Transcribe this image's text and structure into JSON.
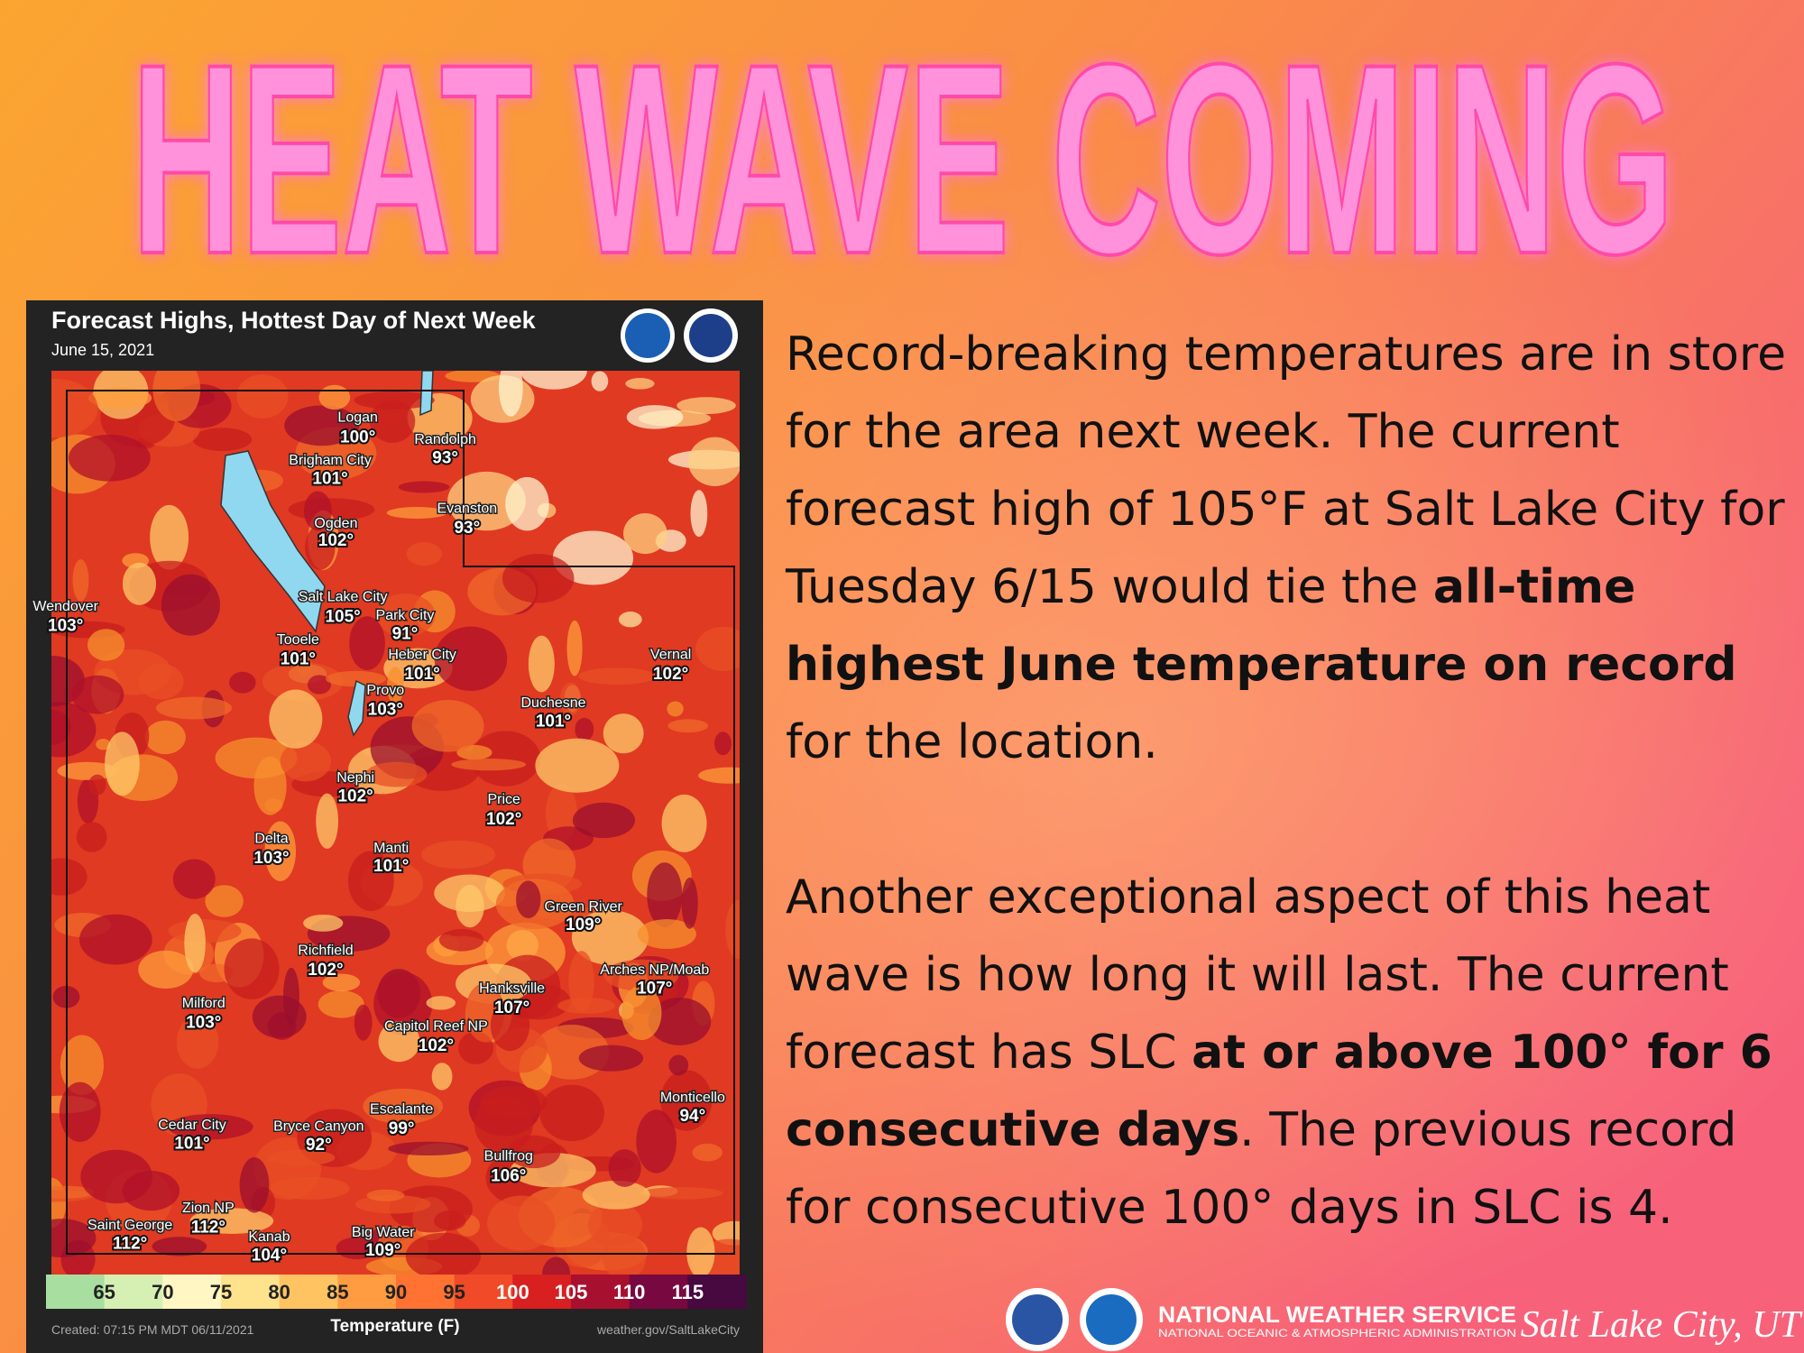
{
  "header": {
    "title": "HEAT WAVE COMING"
  },
  "map": {
    "title": "Forecast Highs, Hottest Day of Next Week",
    "date": "June 15, 2021",
    "cities": [
      {
        "name": "Logan",
        "temp": "100°"
      },
      {
        "name": "Randolph",
        "temp": "93°"
      },
      {
        "name": "Brigham City",
        "temp": "101°"
      },
      {
        "name": "Evanston",
        "temp": "93°"
      },
      {
        "name": "Ogden",
        "temp": "102°"
      },
      {
        "name": "Wendover",
        "temp": "103°"
      },
      {
        "name": "Salt Lake City",
        "temp": "105°"
      },
      {
        "name": "Park City",
        "temp": "91°"
      },
      {
        "name": "Tooele",
        "temp": "101°"
      },
      {
        "name": "Heber City",
        "temp": "101°"
      },
      {
        "name": "Vernal",
        "temp": "102°"
      },
      {
        "name": "Provo",
        "temp": "103°"
      },
      {
        "name": "Duchesne",
        "temp": "101°"
      },
      {
        "name": "Nephi",
        "temp": "102°"
      },
      {
        "name": "Price",
        "temp": "102°"
      },
      {
        "name": "Delta",
        "temp": "103°"
      },
      {
        "name": "Manti",
        "temp": "101°"
      },
      {
        "name": "Green River",
        "temp": "109°"
      },
      {
        "name": "Arches NP/Moab",
        "temp": "107°"
      },
      {
        "name": "Richfield",
        "temp": "102°"
      },
      {
        "name": "Hanksville",
        "temp": "107°"
      },
      {
        "name": "Milford",
        "temp": "103°"
      },
      {
        "name": "Capitol Reef NP",
        "temp": "102°"
      },
      {
        "name": "Monticello",
        "temp": "94°"
      },
      {
        "name": "Escalante",
        "temp": "99°"
      },
      {
        "name": "Cedar City",
        "temp": "101°"
      },
      {
        "name": "Bryce Canyon",
        "temp": "92°"
      },
      {
        "name": "Bullfrog",
        "temp": "106°"
      },
      {
        "name": "Zion NP",
        "temp": "112°"
      },
      {
        "name": "Saint George",
        "temp": "112°"
      },
      {
        "name": "Kanab",
        "temp": "104°"
      },
      {
        "name": "Big Water",
        "temp": "109°"
      }
    ],
    "scale": {
      "ticks": [
        65,
        70,
        75,
        80,
        85,
        90,
        95,
        100,
        105,
        110,
        115
      ],
      "label": "Temperature (F)"
    },
    "created": "Created: 07:15 PM MDT 06/11/2021",
    "source": "weather.gov/SaltLakeCity"
  },
  "body": {
    "paragraphs": [
      [
        {
          "text": "Record-breaking temperatures are in store for the area next week. The current forecast high of 105°F at Salt Lake City for Tuesday 6/15 would tie the ",
          "bold": false
        },
        {
          "text": "all-time highest June temperature on record",
          "bold": true
        },
        {
          "text": " for the location.",
          "bold": false
        }
      ],
      [
        {
          "text": "Another exceptional aspect of this heat wave is how long it will last. The current forecast has SLC ",
          "bold": false
        },
        {
          "text": "at or above 100° for 6 consecutive days",
          "bold": true
        },
        {
          "text": ". The previous record for consecutive 100° days in SLC is 4.",
          "bold": false
        }
      ]
    ]
  },
  "footer": {
    "agency": "NATIONAL WEATHER SERVICE",
    "subtitle": "NATIONAL OCEANIC & ATMOSPHERIC ADMINISTRATION",
    "location": "Salt Lake City, UT"
  }
}
